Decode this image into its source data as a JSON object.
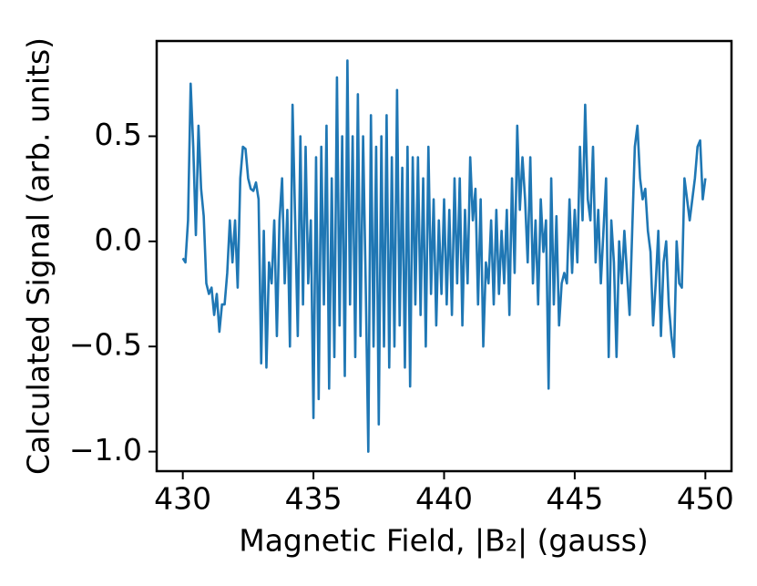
{
  "chart_data": {
    "type": "line",
    "xlabel": "Magnetic Field, |B₂| (gauss)",
    "ylabel": "Calculated Signal (arb. units)",
    "color": "#1f77b4",
    "xlim": [
      429.0,
      451.0
    ],
    "ylim": [
      -1.093,
      0.953
    ],
    "xticks": [
      430,
      435,
      440,
      445,
      450
    ],
    "yticks": [
      {
        "value": -1.0,
        "label": "−1.0"
      },
      {
        "value": -0.5,
        "label": "−0.5"
      },
      {
        "value": 0.0,
        "label": "0.0"
      },
      0.5
    ],
    "x": [
      430.0,
      430.1,
      430.2,
      430.3,
      430.4,
      430.5,
      430.6,
      430.7,
      430.8,
      430.9,
      431.0,
      431.1,
      431.2,
      431.3,
      431.4,
      431.5,
      431.6,
      431.7,
      431.8,
      431.9,
      432.0,
      432.1,
      432.2,
      432.3,
      432.4,
      432.5,
      432.6,
      432.7,
      432.8,
      432.9,
      433.0,
      433.1,
      433.2,
      433.3,
      433.4,
      433.5,
      433.6,
      433.7,
      433.8,
      433.9,
      434.0,
      434.1,
      434.2,
      434.3,
      434.4,
      434.5,
      434.6,
      434.7,
      434.8,
      434.9,
      435.0,
      435.1,
      435.2,
      435.3,
      435.4,
      435.5,
      435.6,
      435.7,
      435.8,
      435.9,
      436.0,
      436.1,
      436.2,
      436.3,
      436.4,
      436.5,
      436.6,
      436.7,
      436.8,
      436.9,
      437.0,
      437.1,
      437.2,
      437.3,
      437.4,
      437.5,
      437.6,
      437.7,
      437.8,
      437.9,
      438.0,
      438.1,
      438.2,
      438.3,
      438.4,
      438.5,
      438.6,
      438.7,
      438.8,
      438.9,
      439.0,
      439.1,
      439.2,
      439.3,
      439.4,
      439.5,
      439.6,
      439.7,
      439.8,
      439.9,
      440.0,
      440.1,
      440.2,
      440.3,
      440.4,
      440.5,
      440.6,
      440.7,
      440.8,
      440.9,
      441.0,
      441.1,
      441.2,
      441.3,
      441.4,
      441.5,
      441.6,
      441.7,
      441.8,
      441.9,
      442.0,
      442.1,
      442.2,
      442.3,
      442.4,
      442.5,
      442.6,
      442.7,
      442.8,
      442.9,
      443.0,
      443.1,
      443.2,
      443.3,
      443.4,
      443.5,
      443.6,
      443.7,
      443.8,
      443.9,
      444.0,
      444.1,
      444.2,
      444.3,
      444.4,
      444.5,
      444.6,
      444.7,
      444.8,
      444.9,
      445.0,
      445.1,
      445.2,
      445.3,
      445.4,
      445.5,
      445.6,
      445.7,
      445.8,
      445.9,
      446.0,
      446.1,
      446.2,
      446.3,
      446.4,
      446.5,
      446.6,
      446.7,
      446.8,
      446.9,
      447.0,
      447.1,
      447.2,
      447.3,
      447.4,
      447.5,
      447.6,
      447.7,
      447.8,
      447.9,
      448.0,
      448.1,
      448.2,
      448.3,
      448.4,
      448.5,
      448.6,
      448.7,
      448.8,
      448.9,
      449.0,
      449.1,
      449.2,
      449.3,
      449.4,
      449.5,
      449.6,
      449.7,
      449.8,
      449.9,
      450.0
    ],
    "values": [
      -0.08,
      -0.1,
      0.1,
      0.75,
      0.45,
      0.03,
      0.55,
      0.25,
      0.12,
      -0.2,
      -0.25,
      -0.22,
      -0.35,
      -0.25,
      -0.43,
      -0.3,
      -0.3,
      -0.15,
      0.1,
      -0.1,
      0.1,
      -0.22,
      0.3,
      0.45,
      0.44,
      0.3,
      0.25,
      0.24,
      0.28,
      0.2,
      -0.58,
      0.05,
      -0.6,
      -0.1,
      -0.2,
      0.1,
      -0.45,
      0.1,
      0.3,
      -0.2,
      0.15,
      -0.5,
      0.65,
      0.1,
      -0.45,
      0.5,
      -0.3,
      0.45,
      -0.2,
      0.1,
      -0.84,
      0.4,
      -0.75,
      0.45,
      -0.3,
      0.55,
      -0.7,
      0.3,
      -0.55,
      0.78,
      -0.4,
      0.5,
      -0.64,
      0.86,
      -0.3,
      0.5,
      -0.55,
      0.7,
      -0.45,
      0.5,
      -0.2,
      -1.0,
      0.6,
      -0.5,
      0.45,
      -0.87,
      0.5,
      -0.5,
      0.6,
      -0.6,
      0.4,
      -0.5,
      0.72,
      -0.4,
      0.35,
      -0.6,
      0.45,
      -0.69,
      0.4,
      -0.3,
      0.4,
      -0.35,
      0.3,
      -0.5,
      0.45,
      -0.25,
      0.2,
      -0.4,
      0.1,
      -0.25,
      0.2,
      -0.3,
      0.15,
      -0.35,
      0.3,
      -0.2,
      0.3,
      -0.4,
      0.15,
      -0.2,
      0.4,
      0.1,
      0.25,
      -0.3,
      0.2,
      -0.5,
      -0.1,
      -0.2,
      0.1,
      -0.3,
      0.15,
      -0.25,
      0.05,
      -0.2,
      0.15,
      -0.35,
      0.3,
      -0.15,
      0.55,
      0.15,
      0.4,
      0.2,
      -0.1,
      0.4,
      -0.2,
      0.1,
      -0.3,
      0.2,
      -0.05,
      0.1,
      -0.7,
      0.3,
      -0.3,
      0.12,
      -0.4,
      -0.2,
      -0.15,
      -0.2,
      0.2,
      -0.15,
      0.15,
      -0.1,
      0.45,
      0.1,
      0.65,
      0.2,
      0.1,
      0.45,
      -0.1,
      0.15,
      -0.2,
      0.05,
      0.3,
      -0.55,
      0.1,
      -0.1,
      -0.55,
      0.0,
      -0.2,
      0.05,
      -0.15,
      -0.35,
      0.05,
      0.45,
      0.55,
      0.3,
      0.2,
      0.25,
      0.05,
      -0.05,
      -0.4,
      -0.2,
      0.05,
      -0.45,
      -0.1,
      0.0,
      -0.3,
      -0.45,
      -0.55,
      0.0,
      -0.2,
      -0.22,
      0.3,
      0.2,
      0.1,
      0.2,
      0.3,
      0.45,
      0.48,
      0.2,
      0.3
    ]
  }
}
